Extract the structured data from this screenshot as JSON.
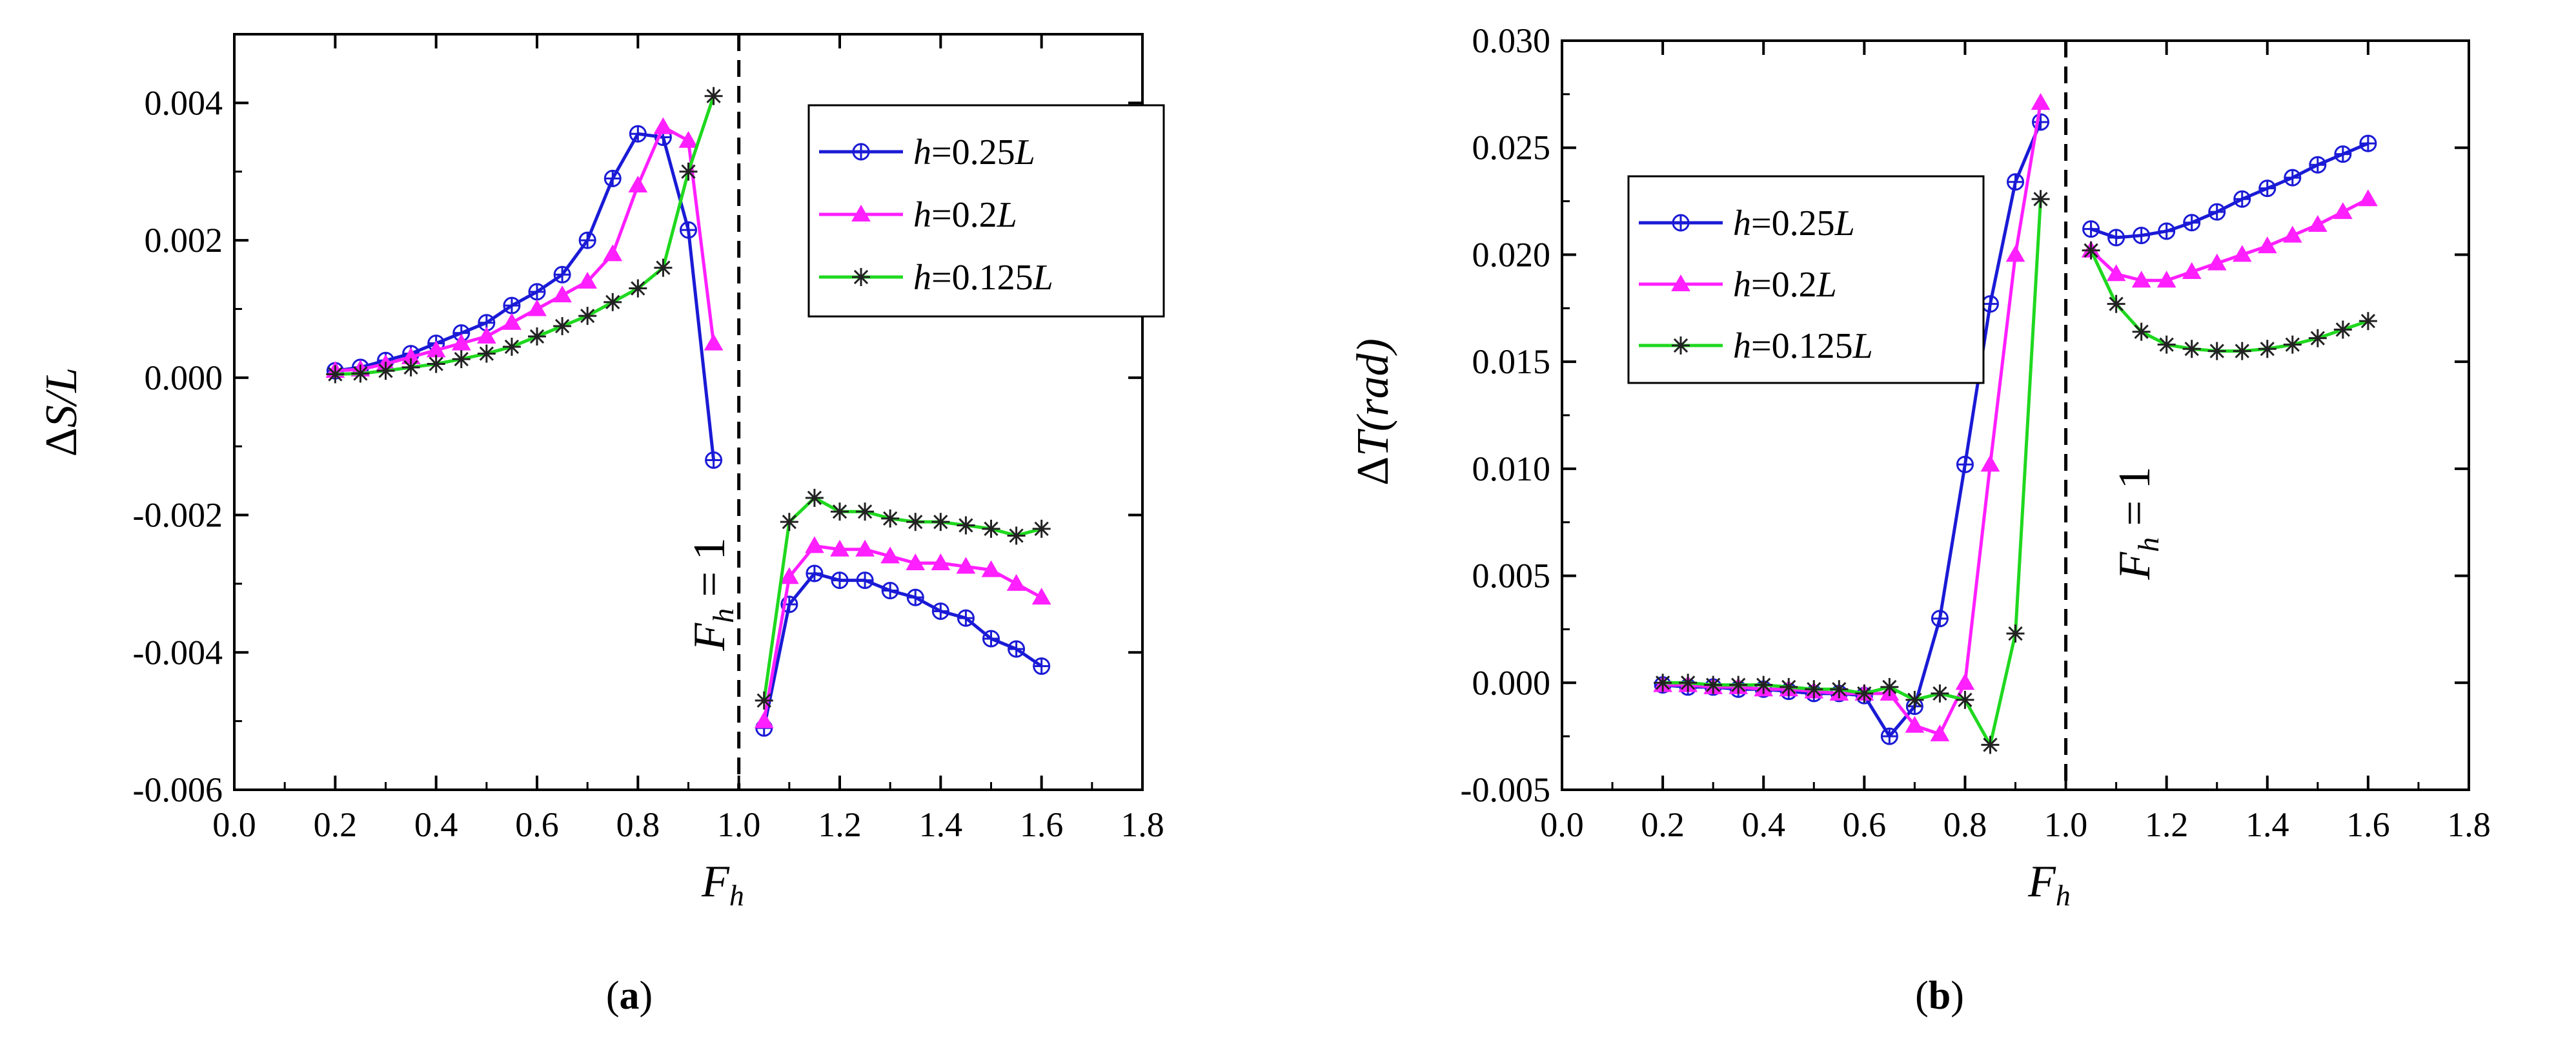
{
  "figure": {
    "panels": [
      {
        "caption_letter": "a",
        "ylabel_delta": "Δ",
        "ylabel_main": "S",
        "ylabel_rest": "/L",
        "xlabel_main": "F",
        "xlabel_sub": "h",
        "ref_label_main": "F",
        "ref_label_sub": "h",
        "ref_label_rest": " = 1"
      },
      {
        "caption_letter": "b",
        "ylabel_delta": "Δ",
        "ylabel_main": "T",
        "ylabel_rest": "(rad)",
        "xlabel_main": "F",
        "xlabel_sub": "h",
        "ref_label_main": "F",
        "ref_label_sub": "h",
        "ref_label_rest": " = 1"
      }
    ]
  },
  "chart_data": [
    {
      "type": "line",
      "title": "",
      "xlabel": "F_h",
      "ylabel": "ΔS/L",
      "xlim": [
        0.0,
        1.8
      ],
      "ylim": [
        -0.006,
        0.005
      ],
      "xticks": [
        0.0,
        0.2,
        0.4,
        0.6,
        0.8,
        1.0,
        1.2,
        1.4,
        1.6,
        1.8
      ],
      "xtick_labels": [
        "0.0",
        "0.2",
        "0.4",
        "0.6",
        "0.8",
        "1.0",
        "1.2",
        "1.4",
        "1.6",
        "1.8"
      ],
      "yticks": [
        -0.006,
        -0.004,
        -0.002,
        0.0,
        0.002,
        0.004
      ],
      "ytick_labels": [
        "-0.006",
        "-0.004",
        "-0.002",
        "0.000",
        "0.002",
        "0.004"
      ],
      "reference_line_x": 1.0,
      "legend_position": "top-right",
      "series": [
        {
          "name_prefix": "h",
          "name_value": "=0.25",
          "name_suffix": "L",
          "color": "#1a1ad6",
          "marker": "circle-cross",
          "x": [
            0.2,
            0.25,
            0.3,
            0.35,
            0.4,
            0.45,
            0.5,
            0.55,
            0.6,
            0.65,
            0.7,
            0.75,
            0.8,
            0.85,
            0.9,
            0.95,
            1.05,
            1.1,
            1.15,
            1.2,
            1.25,
            1.3,
            1.35,
            1.4,
            1.45,
            1.5,
            1.55,
            1.6
          ],
          "y": [
            0.0001,
            0.00015,
            0.00025,
            0.00035,
            0.0005,
            0.00065,
            0.0008,
            0.00105,
            0.00125,
            0.0015,
            0.002,
            0.0029,
            0.00355,
            0.0035,
            0.00215,
            -0.0012,
            -0.0051,
            -0.0033,
            -0.00285,
            -0.00295,
            -0.00295,
            -0.0031,
            -0.0032,
            -0.0034,
            -0.0035,
            -0.0038,
            -0.00395,
            -0.0042
          ]
        },
        {
          "name_prefix": "h",
          "name_value": "=0.2",
          "name_suffix": "L",
          "color": "#ff1fff",
          "marker": "triangle",
          "x": [
            0.2,
            0.25,
            0.3,
            0.35,
            0.4,
            0.45,
            0.5,
            0.55,
            0.6,
            0.65,
            0.7,
            0.75,
            0.8,
            0.85,
            0.9,
            0.95,
            1.05,
            1.1,
            1.15,
            1.2,
            1.25,
            1.3,
            1.35,
            1.4,
            1.45,
            1.5,
            1.55,
            1.6
          ],
          "y": [
            0.0001,
            0.00012,
            0.0002,
            0.0003,
            0.0004,
            0.0005,
            0.0006,
            0.0008,
            0.001,
            0.0012,
            0.0014,
            0.0018,
            0.0028,
            0.00365,
            0.00345,
            0.0005,
            -0.005,
            -0.0029,
            -0.00245,
            -0.0025,
            -0.0025,
            -0.0026,
            -0.0027,
            -0.0027,
            -0.00275,
            -0.0028,
            -0.003,
            -0.0032
          ]
        },
        {
          "name_prefix": "h",
          "name_value": "=0.125",
          "name_suffix": "L",
          "color": "#1fd81f",
          "marker": "asterisk",
          "x": [
            0.2,
            0.25,
            0.3,
            0.35,
            0.4,
            0.45,
            0.5,
            0.55,
            0.6,
            0.65,
            0.7,
            0.75,
            0.8,
            0.85,
            0.9,
            0.95,
            1.05,
            1.1,
            1.15,
            1.2,
            1.25,
            1.3,
            1.35,
            1.4,
            1.45,
            1.5,
            1.55,
            1.6
          ],
          "y": [
            5e-05,
            6e-05,
            0.0001,
            0.00015,
            0.0002,
            0.00027,
            0.00035,
            0.00045,
            0.0006,
            0.00075,
            0.0009,
            0.0011,
            0.0013,
            0.0016,
            0.003,
            0.0041,
            -0.0047,
            -0.0021,
            -0.00175,
            -0.00195,
            -0.00195,
            -0.00205,
            -0.0021,
            -0.0021,
            -0.00215,
            -0.0022,
            -0.0023,
            -0.0022
          ]
        }
      ]
    },
    {
      "type": "line",
      "title": "",
      "xlabel": "F_h",
      "ylabel": "ΔT(rad)",
      "xlim": [
        0.0,
        1.8
      ],
      "ylim": [
        -0.005,
        0.03
      ],
      "xticks": [
        0.0,
        0.2,
        0.4,
        0.6,
        0.8,
        1.0,
        1.2,
        1.4,
        1.6,
        1.8
      ],
      "xtick_labels": [
        "0.0",
        "0.2",
        "0.4",
        "0.6",
        "0.8",
        "1.0",
        "1.2",
        "1.4",
        "1.6",
        "1.8"
      ],
      "yticks": [
        -0.005,
        0.0,
        0.005,
        0.01,
        0.015,
        0.02,
        0.025,
        0.03
      ],
      "ytick_labels": [
        "-0.005",
        "0.000",
        "0.005",
        "0.010",
        "0.015",
        "0.020",
        "0.025",
        "0.030"
      ],
      "reference_line_x": 1.0,
      "legend_position": "top-left",
      "series": [
        {
          "name_prefix": "h",
          "name_value": "=0.25",
          "name_suffix": "L",
          "color": "#1a1ad6",
          "marker": "circle-cross",
          "x": [
            0.2,
            0.25,
            0.3,
            0.35,
            0.4,
            0.45,
            0.5,
            0.55,
            0.6,
            0.65,
            0.7,
            0.75,
            0.8,
            0.85,
            0.9,
            0.95,
            1.05,
            1.1,
            1.15,
            1.2,
            1.25,
            1.3,
            1.35,
            1.4,
            1.45,
            1.5,
            1.55,
            1.6
          ],
          "y": [
            -0.0001,
            -0.0002,
            -0.0002,
            -0.0003,
            -0.0003,
            -0.0004,
            -0.0005,
            -0.0005,
            -0.0006,
            -0.0025,
            -0.0011,
            0.003,
            0.0102,
            0.0177,
            0.0234,
            0.0262,
            0.0212,
            0.0208,
            0.0209,
            0.0211,
            0.0215,
            0.022,
            0.0226,
            0.0231,
            0.0236,
            0.0242,
            0.0247,
            0.0252
          ]
        },
        {
          "name_prefix": "h",
          "name_value": "=0.2",
          "name_suffix": "L",
          "color": "#ff1fff",
          "marker": "triangle",
          "x": [
            0.2,
            0.25,
            0.3,
            0.35,
            0.4,
            0.45,
            0.5,
            0.55,
            0.6,
            0.65,
            0.7,
            0.75,
            0.8,
            0.85,
            0.9,
            0.95,
            1.05,
            1.1,
            1.15,
            1.2,
            1.25,
            1.3,
            1.35,
            1.4,
            1.45,
            1.5,
            1.55,
            1.6
          ],
          "y": [
            -0.0001,
            -0.0001,
            -0.0002,
            -0.0002,
            -0.0003,
            -0.0003,
            -0.0004,
            -0.0005,
            -0.0005,
            -0.0005,
            -0.002,
            -0.0024,
            0.0,
            0.0102,
            0.02,
            0.0271,
            0.0202,
            0.0191,
            0.0188,
            0.0188,
            0.0192,
            0.0196,
            0.02,
            0.0204,
            0.0209,
            0.0214,
            0.022,
            0.0226
          ]
        },
        {
          "name_prefix": "h",
          "name_value": "=0.125",
          "name_suffix": "L",
          "color": "#1fd81f",
          "marker": "asterisk",
          "x": [
            0.2,
            0.25,
            0.3,
            0.35,
            0.4,
            0.45,
            0.5,
            0.55,
            0.6,
            0.65,
            0.7,
            0.75,
            0.8,
            0.85,
            0.9,
            0.95,
            1.05,
            1.1,
            1.15,
            1.2,
            1.25,
            1.3,
            1.35,
            1.4,
            1.45,
            1.5,
            1.55,
            1.6
          ],
          "y": [
            0.0,
            0.0,
            -0.0001,
            -0.0001,
            -0.0001,
            -0.0002,
            -0.0003,
            -0.0003,
            -0.0005,
            -0.0002,
            -0.0008,
            -0.0005,
            -0.0008,
            -0.0029,
            0.0023,
            0.0226,
            0.0202,
            0.0177,
            0.0164,
            0.0158,
            0.0156,
            0.0155,
            0.0155,
            0.0156,
            0.0158,
            0.0161,
            0.0165,
            0.0169
          ]
        }
      ]
    }
  ]
}
